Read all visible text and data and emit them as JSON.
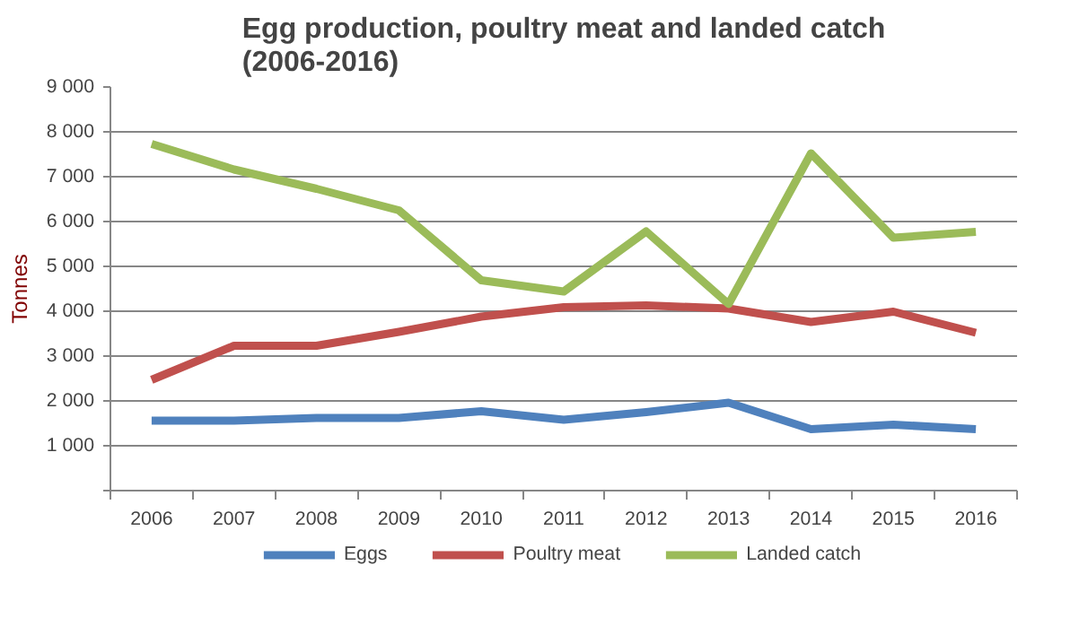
{
  "chart_data": {
    "type": "line",
    "title": "Egg production, poultry meat and landed catch\n(2006-2016)",
    "ylabel": "Tonnes",
    "categories": [
      "2006",
      "2007",
      "2008",
      "2009",
      "2010",
      "2011",
      "2012",
      "2013",
      "2014",
      "2015",
      "2016"
    ],
    "series": [
      {
        "name": "Eggs",
        "color": "#4f81bd",
        "values": [
          1560,
          1560,
          1620,
          1620,
          1770,
          1580,
          1750,
          1960,
          1370,
          1470,
          1370
        ]
      },
      {
        "name": "Poultry meat",
        "color": "#c0504d",
        "values": [
          2470,
          3230,
          3230,
          3540,
          3880,
          4090,
          4130,
          4060,
          3760,
          3990,
          3520
        ]
      },
      {
        "name": "Landed catch",
        "color": "#9bbb59",
        "values": [
          7730,
          7160,
          6730,
          6250,
          4690,
          4440,
          5780,
          4160,
          7520,
          5640,
          5770
        ]
      }
    ],
    "ylim": [
      0,
      9000
    ],
    "yticks": [
      {
        "value": 0,
        "label": null
      },
      {
        "value": 1000,
        "label": "1 000"
      },
      {
        "value": 2000,
        "label": "2 000"
      },
      {
        "value": 3000,
        "label": "3 000"
      },
      {
        "value": 4000,
        "label": "4 000"
      },
      {
        "value": 5000,
        "label": "5 000"
      },
      {
        "value": 6000,
        "label": "6 000"
      },
      {
        "value": 7000,
        "label": "7 000"
      },
      {
        "value": 8000,
        "label": "8 000"
      },
      {
        "value": 9000,
        "label": "9 000"
      }
    ],
    "grid": "y",
    "legend": "bottom",
    "marker": "none",
    "line_style": "solid"
  }
}
